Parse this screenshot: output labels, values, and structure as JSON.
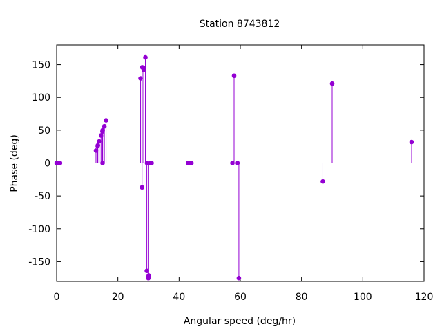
{
  "chart_data": {
    "type": "scatter",
    "style": "stem",
    "title": "Station 8743812",
    "xlabel": "Angular speed (deg/hr)",
    "ylabel": "Phase (deg)",
    "xlim": [
      0,
      120
    ],
    "ylim": [
      -180,
      180
    ],
    "xticks": [
      0,
      20,
      40,
      60,
      80,
      100,
      120
    ],
    "yticks": [
      -150,
      -100,
      -50,
      0,
      50,
      100,
      150
    ],
    "zero_line": "dotted",
    "grid": false,
    "color": "#9400d3",
    "points": [
      {
        "x": 0.0,
        "y": 0
      },
      {
        "x": 0.04,
        "y": 0
      },
      {
        "x": 0.08,
        "y": 0
      },
      {
        "x": 0.5,
        "y": 0
      },
      {
        "x": 0.55,
        "y": 0
      },
      {
        "x": 1.02,
        "y": 0
      },
      {
        "x": 1.1,
        "y": 0
      },
      {
        "x": 12.85,
        "y": 19
      },
      {
        "x": 13.4,
        "y": 26
      },
      {
        "x": 13.47,
        "y": 27
      },
      {
        "x": 13.9,
        "y": 33
      },
      {
        "x": 14.5,
        "y": 42
      },
      {
        "x": 14.96,
        "y": 48
      },
      {
        "x": 15.0,
        "y": 0
      },
      {
        "x": 15.04,
        "y": 50
      },
      {
        "x": 15.59,
        "y": 56
      },
      {
        "x": 16.14,
        "y": 65
      },
      {
        "x": 27.42,
        "y": 129
      },
      {
        "x": 27.97,
        "y": 146
      },
      {
        "x": 28.44,
        "y": 142
      },
      {
        "x": 28.51,
        "y": 145
      },
      {
        "x": 28.99,
        "y": 161
      },
      {
        "x": 29.46,
        "y": -164
      },
      {
        "x": 29.53,
        "y": 0
      },
      {
        "x": 29.96,
        "y": -175
      },
      {
        "x": 30.0,
        "y": -173
      },
      {
        "x": 30.08,
        "y": -171
      },
      {
        "x": 30.63,
        "y": 0
      },
      {
        "x": 31.02,
        "y": 0
      },
      {
        "x": 27.9,
        "y": -37
      },
      {
        "x": 42.93,
        "y": 0
      },
      {
        "x": 43.48,
        "y": 0
      },
      {
        "x": 44.03,
        "y": 0
      },
      {
        "x": 57.42,
        "y": 0
      },
      {
        "x": 57.97,
        "y": 133
      },
      {
        "x": 58.98,
        "y": 0
      },
      {
        "x": 59.07,
        "y": 0
      },
      {
        "x": 59.53,
        "y": -175
      },
      {
        "x": 86.95,
        "y": -28
      },
      {
        "x": 90.0,
        "y": 121
      },
      {
        "x": 115.94,
        "y": 32
      }
    ]
  }
}
